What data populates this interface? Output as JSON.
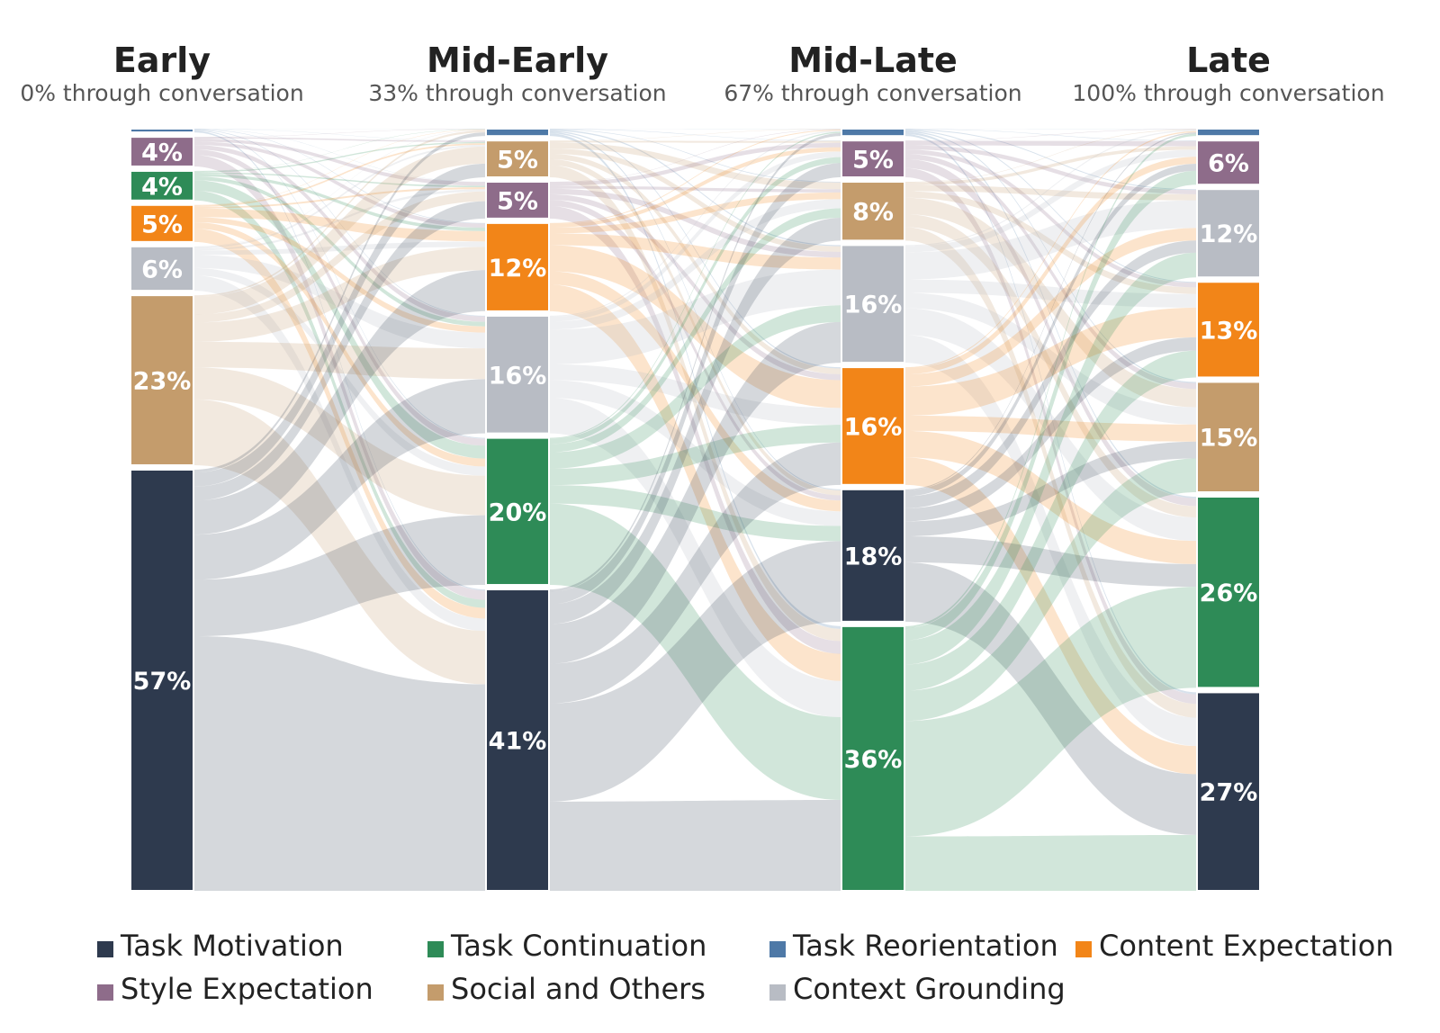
{
  "chart_data": {
    "type": "sankey",
    "stages": [
      {
        "name": "Early",
        "subtitle": "0% through conversation"
      },
      {
        "name": "Mid-Early",
        "subtitle": "33% through conversation"
      },
      {
        "name": "Mid-Late",
        "subtitle": "67% through conversation"
      },
      {
        "name": "Late",
        "subtitle": "100% through conversation"
      }
    ],
    "categories": [
      {
        "key": "reorient",
        "name": "Task Reorientation",
        "color": "#4e79a7"
      },
      {
        "key": "style",
        "name": "Style Expectation",
        "color": "#8e6c8a"
      },
      {
        "key": "social",
        "name": "Social and Others",
        "color": "#c49c6c"
      },
      {
        "key": "continuation",
        "name": "Task Continuation",
        "color": "#2e8b57"
      },
      {
        "key": "content",
        "name": "Content Expectation",
        "color": "#f28518"
      },
      {
        "key": "context",
        "name": "Context Grounding",
        "color": "#b8bcc4"
      },
      {
        "key": "motivation",
        "name": "Task Motivation",
        "color": "#2e3a4e"
      }
    ],
    "nodes": [
      [
        {
          "cat": "reorient",
          "value": 0.5,
          "label": ""
        },
        {
          "cat": "style",
          "value": 4,
          "label": "4%"
        },
        {
          "cat": "continuation",
          "value": 4,
          "label": "4%"
        },
        {
          "cat": "content",
          "value": 5,
          "label": "5%"
        },
        {
          "cat": "context",
          "value": 6,
          "label": "6%"
        },
        {
          "cat": "social",
          "value": 23,
          "label": "23%"
        },
        {
          "cat": "motivation",
          "value": 57,
          "label": "57%"
        }
      ],
      [
        {
          "cat": "reorient",
          "value": 1,
          "label": ""
        },
        {
          "cat": "social",
          "value": 5,
          "label": "5%"
        },
        {
          "cat": "style",
          "value": 5,
          "label": "5%"
        },
        {
          "cat": "content",
          "value": 12,
          "label": "12%"
        },
        {
          "cat": "context",
          "value": 16,
          "label": "16%"
        },
        {
          "cat": "continuation",
          "value": 20,
          "label": "20%"
        },
        {
          "cat": "motivation",
          "value": 41,
          "label": "41%"
        }
      ],
      [
        {
          "cat": "reorient",
          "value": 1,
          "label": ""
        },
        {
          "cat": "style",
          "value": 5,
          "label": "5%"
        },
        {
          "cat": "social",
          "value": 8,
          "label": "8%"
        },
        {
          "cat": "context",
          "value": 16,
          "label": "16%"
        },
        {
          "cat": "content",
          "value": 16,
          "label": "16%"
        },
        {
          "cat": "motivation",
          "value": 18,
          "label": "18%"
        },
        {
          "cat": "continuation",
          "value": 36,
          "label": "36%"
        }
      ],
      [
        {
          "cat": "reorient",
          "value": 1,
          "label": ""
        },
        {
          "cat": "style",
          "value": 6,
          "label": "6%"
        },
        {
          "cat": "context",
          "value": 12,
          "label": "12%"
        },
        {
          "cat": "content",
          "value": 13,
          "label": "13%"
        },
        {
          "cat": "social",
          "value": 15,
          "label": "15%"
        },
        {
          "cat": "continuation",
          "value": 26,
          "label": "26%"
        },
        {
          "cat": "motivation",
          "value": 27,
          "label": "27%"
        }
      ]
    ],
    "legend": {
      "placement": "bottom",
      "order": [
        "motivation",
        "continuation",
        "reorient",
        "content",
        "style",
        "social",
        "context"
      ]
    }
  }
}
